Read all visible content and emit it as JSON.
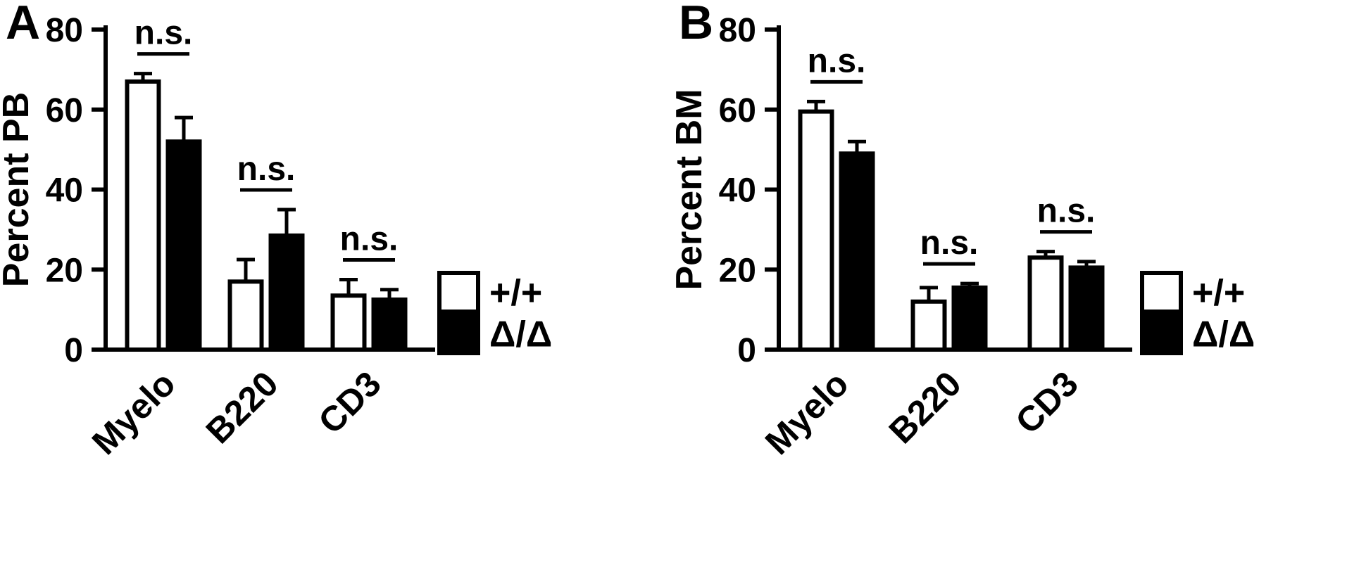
{
  "figure": {
    "background": "#ffffff",
    "ink_color": "#000000",
    "bar_fill_white": "#ffffff",
    "bar_fill_black": "#000000"
  },
  "chart_data": [
    {
      "type": "bar",
      "panel": "A",
      "title": "",
      "xlabel": "",
      "ylabel": "Percent PB",
      "categories": [
        "Myelo",
        "B220",
        "CD3"
      ],
      "series": [
        {
          "name": "+/+",
          "color": "#ffffff",
          "values": [
            67,
            17,
            13.5
          ],
          "errors": [
            2,
            5.5,
            4
          ]
        },
        {
          "name": "Δ/Δ",
          "color": "#000000",
          "values": [
            52,
            28.5,
            12.5
          ],
          "errors": [
            6,
            6.5,
            2.5
          ]
        }
      ],
      "significance": [
        "n.s.",
        "n.s.",
        "n.s."
      ],
      "ylim": [
        0,
        80
      ],
      "yticks": [
        0,
        20,
        40,
        60,
        80
      ],
      "grid": false,
      "error_bars": "upper",
      "legend": [
        "+/+",
        "Δ/Δ"
      ],
      "legend_position": "right"
    },
    {
      "type": "bar",
      "panel": "B",
      "title": "",
      "xlabel": "",
      "ylabel": "Percent BM",
      "categories": [
        "Myelo",
        "B220",
        "CD3"
      ],
      "series": [
        {
          "name": "+/+",
          "color": "#ffffff",
          "values": [
            59.5,
            12,
            23
          ],
          "errors": [
            2.5,
            3.5,
            1.5
          ]
        },
        {
          "name": "Δ/Δ",
          "color": "#000000",
          "values": [
            49,
            15.5,
            20.5
          ],
          "errors": [
            3,
            1,
            1.5
          ]
        }
      ],
      "significance": [
        "n.s.",
        "n.s.",
        "n.s."
      ],
      "ylim": [
        0,
        80
      ],
      "yticks": [
        0,
        20,
        40,
        60,
        80
      ],
      "grid": false,
      "error_bars": "upper",
      "legend": [
        "+/+",
        "Δ/Δ"
      ],
      "legend_position": "right"
    }
  ]
}
